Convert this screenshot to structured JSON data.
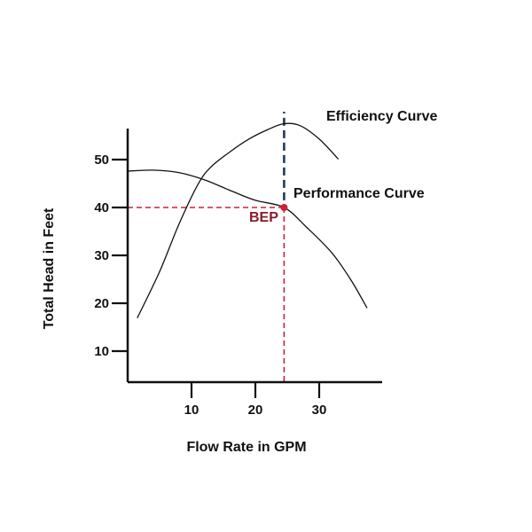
{
  "chart_data": {
    "type": "line",
    "xlabel": "Flow Rate in GPM",
    "ylabel": "Total Head in Feet",
    "x_ticks": [
      10,
      20,
      30
    ],
    "y_ticks": [
      10,
      20,
      30,
      40,
      50
    ],
    "xlim": [
      0,
      40
    ],
    "ylim": [
      0,
      55
    ],
    "grid": false,
    "series": [
      {
        "name": "Performance Curve",
        "color": "#111111",
        "points": [
          [
            0,
            47.6
          ],
          [
            4,
            47.8
          ],
          [
            8,
            47.3
          ],
          [
            12,
            45.8
          ],
          [
            16,
            43.6
          ],
          [
            20,
            41.5
          ],
          [
            24.5,
            40
          ],
          [
            28,
            35.9
          ],
          [
            32,
            30.5
          ],
          [
            35,
            24.8
          ],
          [
            37.5,
            19
          ]
        ]
      },
      {
        "name": "Efficiency Curve",
        "color": "#111111",
        "points": [
          [
            1.5,
            16.9
          ],
          [
            5,
            26.6
          ],
          [
            8,
            36.4
          ],
          [
            11,
            44.8
          ],
          [
            13,
            48.4
          ],
          [
            16,
            51.6
          ],
          [
            19,
            54.3
          ],
          [
            22,
            56.3
          ],
          [
            24.5,
            57.5
          ],
          [
            27,
            57.1
          ],
          [
            30,
            54.3
          ],
          [
            33,
            50.1
          ]
        ]
      }
    ],
    "bep": {
      "label": "BEP",
      "x": 24.5,
      "y": 40,
      "color": "#cc2233",
      "label_color": "#8b1a2b"
    },
    "efficiency_peak_line": {
      "x": 24.5,
      "y_from": 41.5,
      "y_to": 60,
      "color": "#1f3a5a"
    }
  }
}
